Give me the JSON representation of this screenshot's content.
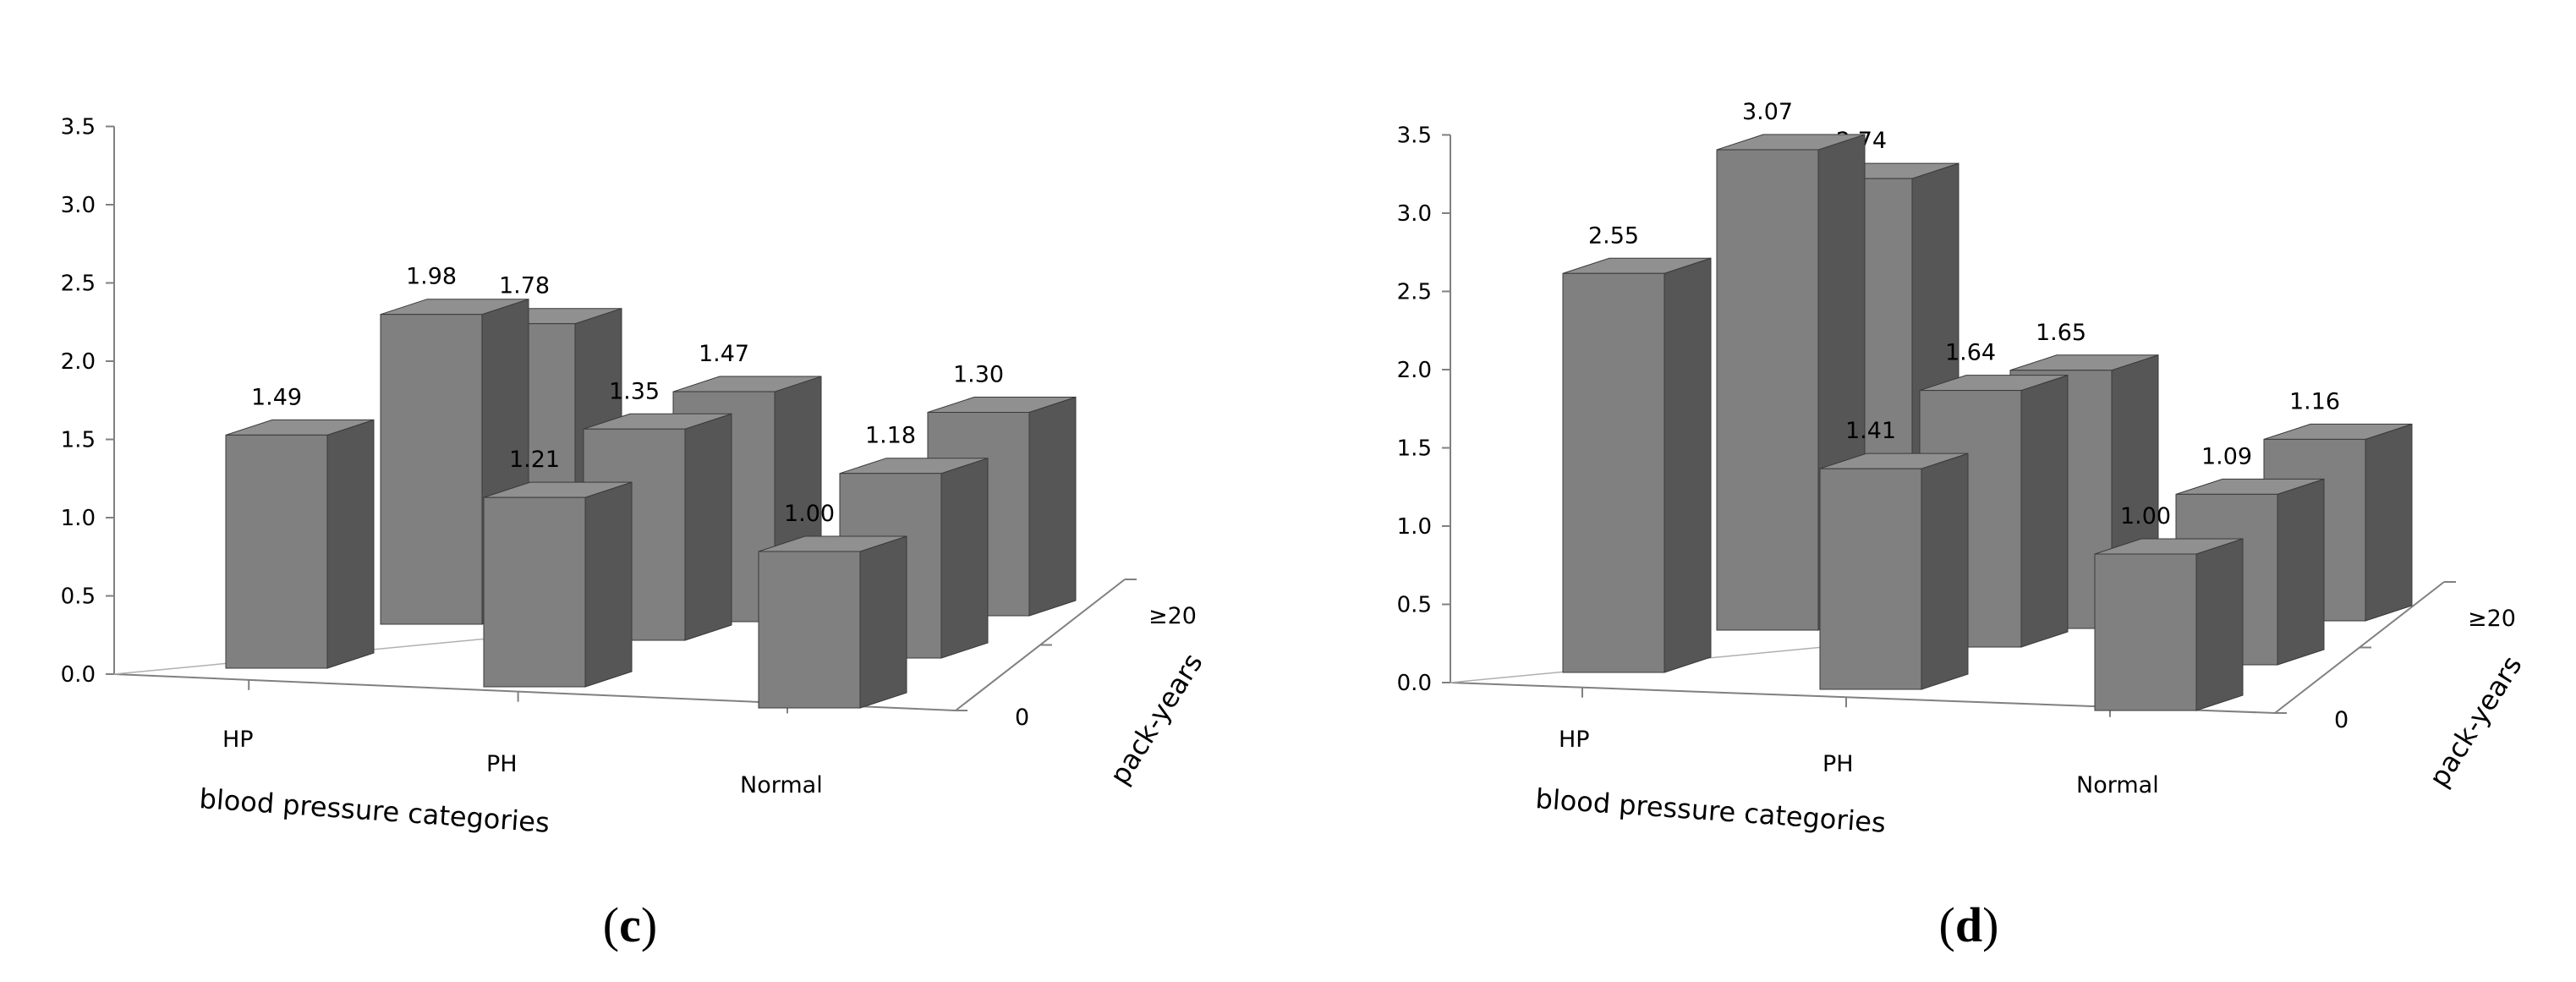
{
  "figure": {
    "panels": [
      {
        "label_open": "(",
        "label_letter": "c",
        "label_close": ")"
      },
      {
        "label_open": "(",
        "label_letter": "d",
        "label_close": ")"
      }
    ]
  },
  "chart_data": [
    {
      "type": "bar",
      "style": "3d-columns",
      "title": "",
      "xlabel": "blood pressure categories",
      "zlabel": "pack-years",
      "ylabel": "",
      "ylim": [
        0,
        3.5
      ],
      "ytick_labels": [
        "0.0",
        "0.5",
        "1.0",
        "1.5",
        "2.0",
        "2.5",
        "3.0",
        "3.5"
      ],
      "categories": [
        "HP",
        "PH",
        "Normal"
      ],
      "depth_categories": [
        "0",
        "≥20"
      ],
      "series": [
        {
          "depth_label": "0",
          "values": [
            1.49,
            1.21,
            1.0
          ],
          "value_labels": [
            "1.49",
            "1.21",
            "1.00"
          ]
        },
        {
          "depth_label": "",
          "values": [
            1.98,
            1.35,
            1.18
          ],
          "value_labels": [
            "1.98",
            "1.35",
            "1.18"
          ]
        },
        {
          "depth_label": "≥20",
          "values": [
            1.78,
            1.47,
            1.3
          ],
          "value_labels": [
            "1.78",
            "1.47",
            "1.30"
          ]
        }
      ],
      "grid": false,
      "legend": "none",
      "bar_color": "#808080",
      "bar_side_color": "#565656",
      "bar_top_color": "#909090"
    },
    {
      "type": "bar",
      "style": "3d-columns",
      "title": "",
      "xlabel": "blood pressure categories",
      "zlabel": "pack-years",
      "ylabel": "",
      "ylim": [
        0,
        3.5
      ],
      "ytick_labels": [
        "0.0",
        "0.5",
        "1.0",
        "1.5",
        "2.0",
        "2.5",
        "3.0",
        "3.5"
      ],
      "categories": [
        "HP",
        "PH",
        "Normal"
      ],
      "depth_categories": [
        "0",
        "≥20"
      ],
      "series": [
        {
          "depth_label": "0",
          "values": [
            2.55,
            1.41,
            1.0
          ],
          "value_labels": [
            "2.55",
            "1.41",
            "1.00"
          ]
        },
        {
          "depth_label": "",
          "values": [
            3.07,
            1.64,
            1.09
          ],
          "value_labels": [
            "3.07",
            "1.64",
            "1.09"
          ]
        },
        {
          "depth_label": "≥20",
          "values": [
            2.74,
            1.65,
            1.16
          ],
          "value_labels": [
            "2.74",
            "1.65",
            "1.16"
          ]
        }
      ],
      "grid": false,
      "legend": "none",
      "bar_color": "#808080",
      "bar_side_color": "#565656",
      "bar_top_color": "#909090"
    }
  ]
}
